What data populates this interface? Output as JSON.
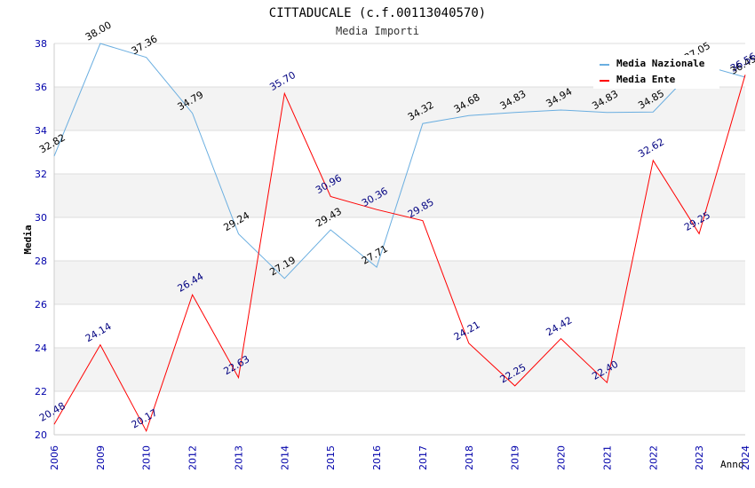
{
  "chart_data": {
    "type": "line",
    "title": "CITTADUCALE (c.f.00113040570)",
    "subtitle": "Media Importi",
    "xlabel": "Anno",
    "ylabel": "Media",
    "ylim": [
      20,
      38
    ],
    "yticks": [
      "20",
      "22",
      "24",
      "26",
      "28",
      "30",
      "32",
      "34",
      "36",
      "38"
    ],
    "categories": [
      "2006",
      "2009",
      "2010",
      "2012",
      "2013",
      "2014",
      "2015",
      "2016",
      "2017",
      "2018",
      "2019",
      "2020",
      "2021",
      "2022",
      "2023",
      "2024"
    ],
    "series": [
      {
        "name": "Media Nazionale",
        "color": "#6aaee0",
        "values": [
          32.82,
          38.0,
          37.36,
          34.79,
          29.24,
          27.19,
          29.43,
          27.71,
          34.32,
          34.68,
          34.83,
          34.94,
          34.83,
          34.85,
          37.05,
          36.45
        ],
        "labels": [
          "32.82",
          "38.00",
          "37.36",
          "34.79",
          "29.24",
          "27.19",
          "29.43",
          "27.71",
          "34.32",
          "34.68",
          "34.83",
          "34.94",
          "34.83",
          "34.85",
          "37.05",
          "36.45"
        ]
      },
      {
        "name": "Media Ente",
        "color": "#ff0000",
        "values": [
          20.48,
          24.14,
          20.17,
          26.44,
          22.63,
          35.7,
          30.96,
          30.36,
          29.85,
          24.21,
          22.25,
          24.42,
          22.4,
          32.62,
          29.25,
          36.56
        ],
        "labels": [
          "20.48",
          "24.14",
          "20.17",
          "26.44",
          "22.63",
          "35.70",
          "30.96",
          "30.36",
          "29.85",
          "24.21",
          "22.25",
          "24.42",
          "22.40",
          "32.62",
          "29.25",
          "36.56"
        ]
      }
    ],
    "legend_position": "top-right"
  }
}
